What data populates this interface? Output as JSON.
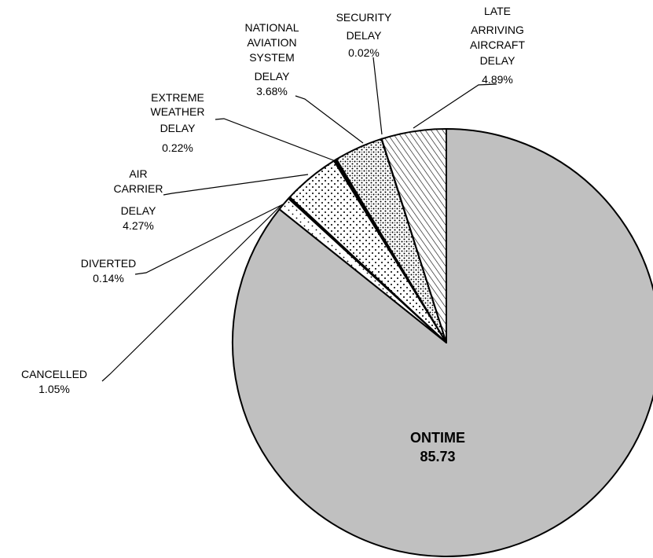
{
  "chart_data": {
    "type": "pie",
    "title": "",
    "slices": [
      {
        "label": "ONTIME",
        "display_value": "85.73",
        "value": 85.73,
        "fill_color": "#c0c0c0",
        "pattern": "solid"
      },
      {
        "label": "CANCELLED",
        "display_value": "1.05%",
        "value": 1.05,
        "fill_color": "#ffffff",
        "pattern": "sparse-dots"
      },
      {
        "label": "DIVERTED",
        "display_value": "0.14%",
        "value": 0.14,
        "fill_color": "#000000",
        "pattern": "solid"
      },
      {
        "label": "AIR CARRIER DELAY",
        "display_value": "4.27%",
        "value": 4.27,
        "fill_color": "#ffffff",
        "pattern": "dots"
      },
      {
        "label": "EXTREME WEATHER DELAY",
        "display_value": "0.22%",
        "value": 0.22,
        "fill_color": "#000000",
        "pattern": "solid"
      },
      {
        "label": "NATIONAL AVIATION SYSTEM DELAY",
        "display_value": "3.68%",
        "value": 3.68,
        "fill_color": "#ffffff",
        "pattern": "dense-dots"
      },
      {
        "label": "SECURITY DELAY",
        "display_value": "0.02%",
        "value": 0.02,
        "fill_color": "#000000",
        "pattern": "solid"
      },
      {
        "label": "LATE ARRIVING AIRCRAFT DELAY",
        "display_value": "4.89%",
        "value": 4.89,
        "fill_color": "#ffffff",
        "pattern": "diagonal-stripes"
      }
    ],
    "labels": {
      "ontime": {
        "name": "ONTIME",
        "value": "85.73"
      },
      "cancelled": {
        "lines": [
          "CANCELLED",
          "1.05%"
        ]
      },
      "diverted": {
        "lines": [
          "DIVERTED",
          "0.14%"
        ]
      },
      "air_carrier": {
        "lines": [
          "AIR",
          "CARRIER",
          "DELAY",
          "4.27%"
        ]
      },
      "extreme_weather": {
        "lines": [
          "EXTREME",
          "WEATHER",
          "DELAY",
          "0.22%"
        ]
      },
      "national_aviation": {
        "lines": [
          "NATIONAL",
          "AVIATION",
          "SYSTEM",
          "DELAY",
          "3.68%"
        ]
      },
      "security": {
        "lines": [
          "SECURITY",
          "DELAY",
          "0.02%"
        ]
      },
      "late_arriving": {
        "lines": [
          "LATE",
          "ARRIVING",
          "AIRCRAFT",
          "DELAY",
          "4.89%"
        ]
      }
    },
    "colors": {
      "ontime_fill": "#c0c0c0",
      "outline": "#000000",
      "pattern_background": "#ffffff"
    },
    "legend": "none"
  }
}
